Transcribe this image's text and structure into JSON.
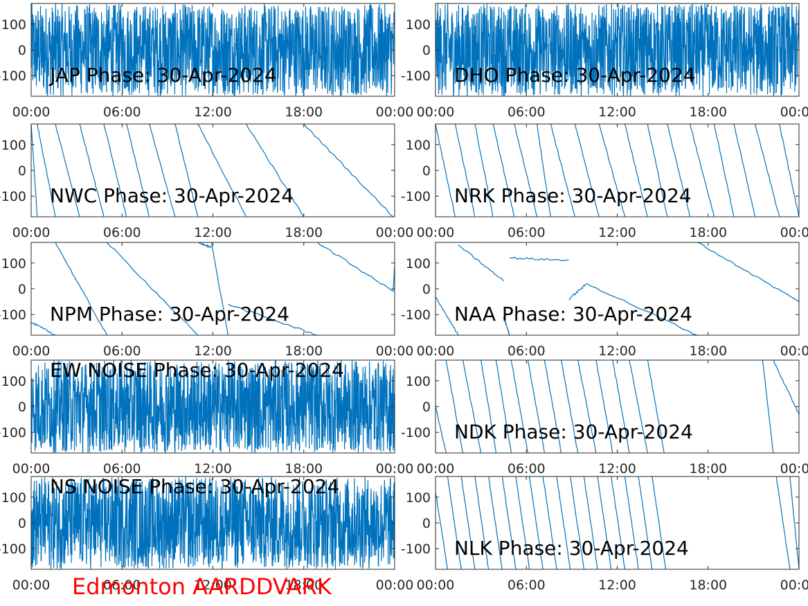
{
  "footer_label": "Edmonton AARDDVARK",
  "colors": {
    "line": "#0072bd",
    "footer": "#ff0000",
    "axis": "#262626"
  },
  "chart_data": [
    {
      "type": "line",
      "title": "JAP Phase: 30-Apr-2024",
      "x_ticks": [
        "00:00",
        "06:00",
        "12:00",
        "18:00",
        "00:00"
      ],
      "y_ticks": [
        "100",
        "0",
        "-100"
      ],
      "ylim": [
        -180,
        180
      ],
      "signal": "noise",
      "wraps": []
    },
    {
      "type": "line",
      "title": "DHO Phase: 30-Apr-2024",
      "x_ticks": [
        "00:00",
        "06:00",
        "12:00",
        "18:00",
        "00:00"
      ],
      "y_ticks": [
        "100",
        "0",
        "-100"
      ],
      "ylim": [
        -180,
        180
      ],
      "signal": "noise",
      "wraps": []
    },
    {
      "type": "line",
      "title": "NWC Phase: 30-Apr-2024",
      "x_ticks": [
        "00:00",
        "06:00",
        "12:00",
        "18:00",
        "00:00"
      ],
      "y_ticks": [
        "100",
        "0",
        "-100"
      ],
      "ylim": [
        -180,
        180
      ],
      "signal": "drift",
      "wraps": [
        [
          0.0,
          180,
          0.4,
          -180
        ],
        [
          0.4,
          180,
          1.6,
          -180
        ],
        [
          1.6,
          180,
          3.2,
          -180
        ],
        [
          3.2,
          180,
          4.8,
          -180
        ],
        [
          4.8,
          180,
          6.3,
          -180
        ],
        [
          6.3,
          180,
          7.8,
          -180
        ],
        [
          7.8,
          180,
          9.5,
          -180
        ],
        [
          9.5,
          180,
          11.0,
          -180
        ],
        [
          11.0,
          180,
          14.2,
          -180
        ],
        [
          14.2,
          180,
          18.0,
          -180
        ],
        [
          18.0,
          180,
          23.9,
          -180
        ]
      ]
    },
    {
      "type": "line",
      "title": "NRK Phase: 30-Apr-2024",
      "x_ticks": [
        "00:00",
        "06:00",
        "12:00",
        "18:00",
        "00:00"
      ],
      "y_ticks": [
        "100",
        "0",
        "-100"
      ],
      "ylim": [
        -180,
        180
      ],
      "signal": "drift",
      "wraps": [
        [
          0.0,
          180,
          1.3,
          -180
        ],
        [
          1.3,
          180,
          2.6,
          -180
        ],
        [
          2.6,
          180,
          3.8,
          -180
        ],
        [
          3.8,
          180,
          5.2,
          -180
        ],
        [
          5.2,
          180,
          6.7,
          -180
        ],
        [
          6.7,
          180,
          7.6,
          -180
        ],
        [
          7.6,
          180,
          9.2,
          -180
        ],
        [
          9.2,
          180,
          10.8,
          -180
        ],
        [
          10.8,
          180,
          12.5,
          -180
        ],
        [
          12.5,
          180,
          14.0,
          -180
        ],
        [
          14.0,
          180,
          15.3,
          -180
        ],
        [
          15.3,
          180,
          16.8,
          -180
        ],
        [
          16.8,
          180,
          18.4,
          -180
        ],
        [
          18.4,
          180,
          19.7,
          -180
        ],
        [
          19.7,
          180,
          21.1,
          -180
        ],
        [
          21.1,
          180,
          22.7,
          -180
        ],
        [
          22.7,
          180,
          24.0,
          -180
        ]
      ]
    },
    {
      "type": "line",
      "title": "NPM Phase: 30-Apr-2024",
      "x_ticks": [
        "00:00",
        "06:00",
        "12:00",
        "18:00",
        "00:00"
      ],
      "y_ticks": [
        "100",
        "0",
        "-100"
      ],
      "ylim": [
        -180,
        180
      ],
      "signal": "drift",
      "wraps": [
        [
          0.0,
          -130,
          1.6,
          -180
        ],
        [
          1.6,
          180,
          5.0,
          -180
        ],
        [
          5.0,
          180,
          11.0,
          -180
        ],
        [
          11.0,
          180,
          11.9,
          160
        ],
        [
          11.9,
          180,
          13.0,
          -180
        ],
        [
          13.0,
          -60,
          18.9,
          -180
        ],
        [
          18.9,
          180,
          23.9,
          -10
        ],
        [
          23.9,
          -10,
          24.0,
          90
        ]
      ]
    },
    {
      "type": "line",
      "title": "NAA Phase: 30-Apr-2024",
      "x_ticks": [
        "00:00",
        "06:00",
        "12:00",
        "18:00",
        "00:00"
      ],
      "y_ticks": [
        "100",
        "0",
        "-100"
      ],
      "ylim": [
        -180,
        180
      ],
      "signal": "drift",
      "wraps": [
        [
          0.0,
          -30,
          1.5,
          -180
        ],
        [
          1.5,
          170,
          4.5,
          30
        ],
        [
          4.5,
          -110,
          4.9,
          -180
        ],
        [
          4.9,
          120,
          8.8,
          110
        ],
        [
          8.8,
          -40,
          10.0,
          20
        ],
        [
          10.0,
          20,
          17.3,
          -180
        ],
        [
          17.3,
          180,
          24.0,
          -50
        ]
      ]
    },
    {
      "type": "line",
      "title": "EW NOISE Phase: 30-Apr-2024",
      "x_ticks": [
        "00:00",
        "06:00",
        "12:00",
        "18:00",
        "00:00"
      ],
      "y_ticks": [
        "100",
        "0",
        "-100"
      ],
      "ylim": [
        -180,
        180
      ],
      "signal": "noise",
      "wraps": []
    },
    {
      "type": "line",
      "title": "NDK Phase: 30-Apr-2024",
      "x_ticks": [
        "00:00",
        "06:00",
        "12:00",
        "18:00",
        "00:00"
      ],
      "y_ticks": [
        "100",
        "0",
        "-100"
      ],
      "ylim": [
        -180,
        180
      ],
      "signal": "drift",
      "wraps": [
        [
          0.0,
          0,
          0.7,
          -180
        ],
        [
          0.7,
          180,
          1.8,
          -180
        ],
        [
          1.8,
          180,
          3.0,
          -180
        ],
        [
          3.0,
          180,
          4.0,
          -180
        ],
        [
          4.0,
          180,
          5.0,
          -180
        ],
        [
          5.0,
          180,
          6.1,
          -180
        ],
        [
          6.1,
          180,
          7.2,
          -180
        ],
        [
          7.2,
          180,
          8.3,
          -180
        ],
        [
          8.3,
          180,
          9.4,
          -180
        ],
        [
          9.4,
          180,
          10.6,
          -180
        ],
        [
          10.6,
          180,
          11.7,
          -180
        ],
        [
          11.7,
          180,
          12.8,
          -180
        ],
        [
          12.8,
          180,
          14.0,
          -180
        ],
        [
          14.0,
          180,
          15.1,
          -180
        ],
        [
          21.6,
          180,
          22.3,
          -180
        ],
        [
          22.3,
          180,
          24.0,
          -30
        ]
      ]
    },
    {
      "type": "line",
      "title": "NS NOISE Phase: 30-Apr-2024",
      "x_ticks": [
        "00:00",
        "06:00",
        "12:00",
        "18:00",
        "00:00"
      ],
      "y_ticks": [
        "100",
        "0",
        "-100"
      ],
      "ylim": [
        -180,
        180
      ],
      "signal": "noise",
      "wraps": []
    },
    {
      "type": "line",
      "title": "NLK Phase: 30-Apr-2024",
      "x_ticks": [
        "00:00",
        "06:00",
        "12:00",
        "18:00",
        "00:00"
      ],
      "y_ticks": [
        "100",
        "0",
        "-100"
      ],
      "ylim": [
        -180,
        180
      ],
      "signal": "drift",
      "wraps": [
        [
          0.0,
          120,
          0.8,
          -180
        ],
        [
          0.8,
          180,
          1.7,
          -180
        ],
        [
          1.7,
          180,
          2.6,
          -180
        ],
        [
          2.6,
          180,
          3.5,
          -180
        ],
        [
          3.5,
          180,
          4.4,
          -180
        ],
        [
          4.4,
          180,
          5.3,
          -180
        ],
        [
          5.3,
          180,
          6.2,
          -180
        ],
        [
          6.2,
          180,
          7.1,
          -180
        ],
        [
          7.1,
          180,
          8.0,
          -180
        ],
        [
          8.0,
          180,
          8.9,
          -180
        ],
        [
          8.9,
          180,
          9.8,
          -180
        ],
        [
          9.8,
          180,
          10.7,
          -180
        ],
        [
          10.7,
          180,
          11.6,
          -180
        ],
        [
          11.6,
          180,
          12.5,
          -180
        ],
        [
          12.5,
          180,
          13.4,
          -180
        ],
        [
          13.4,
          180,
          14.3,
          -180
        ],
        [
          14.3,
          180,
          15.2,
          -180
        ],
        [
          22.5,
          180,
          23.4,
          -180
        ],
        [
          23.4,
          180,
          24.0,
          -180
        ]
      ]
    }
  ]
}
